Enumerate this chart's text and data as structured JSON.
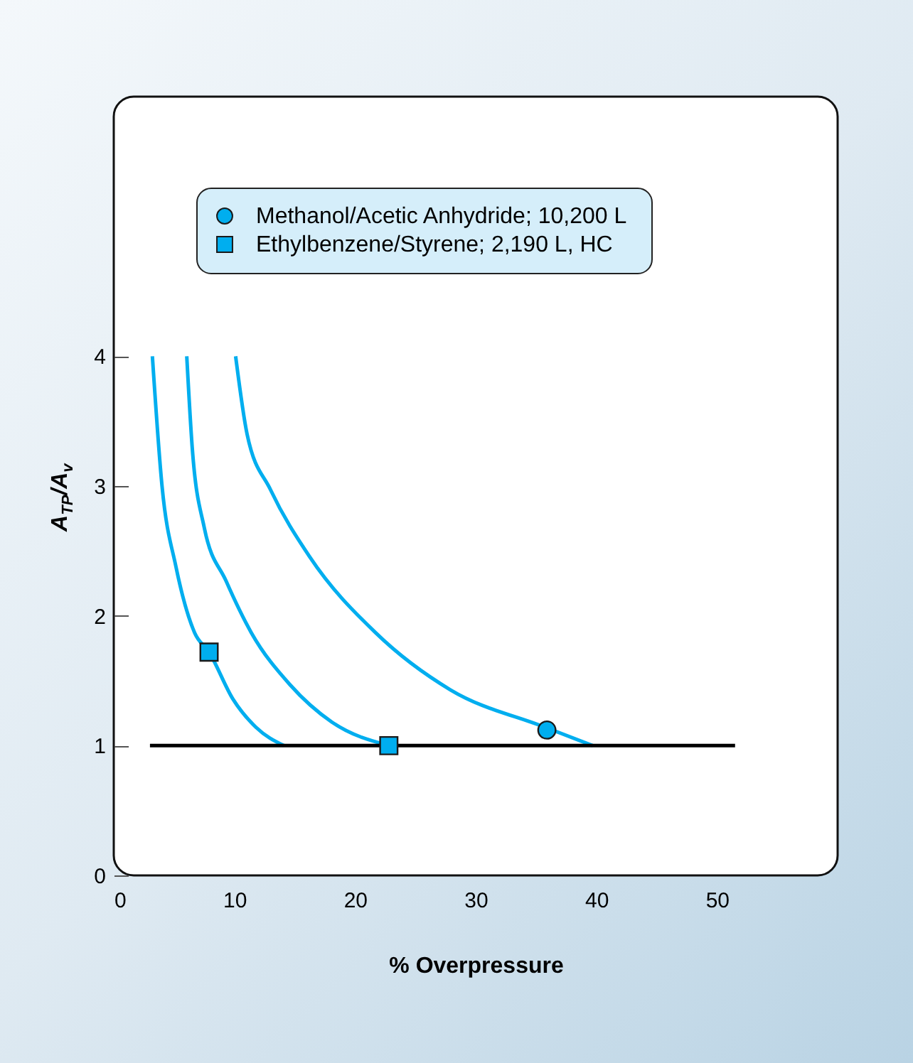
{
  "chart_data": {
    "type": "line",
    "xlabel": "% Overpressure",
    "ylabel": "A$_{TP}$/A$_{v}$",
    "xlim": [
      0,
      60
    ],
    "ylim": [
      0,
      6
    ],
    "xticks": [
      0,
      10,
      20,
      30,
      40,
      50
    ],
    "yticks": [
      0,
      1,
      2,
      3,
      4
    ],
    "grid": false,
    "legend": "top",
    "series": [
      {
        "color": "#00aeef",
        "x": [
          3.2,
          4.0,
          5.15,
          6.7,
          7.9,
          9.87,
          11.8,
          14.1
        ],
        "values": [
          4.0,
          3.0,
          2.38,
          1.87,
          1.72,
          1.36,
          1.14,
          1.0
        ]
      },
      {
        "color": "#00aeef",
        "x": [
          6.05,
          6.5,
          7.5,
          9.3,
          11.4,
          14.6,
          18.1,
          22.8
        ],
        "values": [
          4.0,
          3.3,
          2.68,
          2.27,
          1.87,
          1.47,
          1.18,
          1.0
        ]
      },
      {
        "color": "#00aeef",
        "x": [
          10.1,
          11.05,
          13.0,
          16.2,
          21.7,
          27.9,
          35.8,
          39.7
        ],
        "values": [
          4.0,
          3.4,
          2.97,
          2.46,
          1.87,
          1.43,
          1.14,
          1.0
        ]
      },
      {
        "color": "#000000",
        "x": [
          3.0,
          51.5
        ],
        "values": [
          1,
          1
        ]
      },
      {
        "type": "scatter",
        "name": "Methanol/Acetic Anhydride;  10,200 L",
        "color": "#00aeef",
        "marker": "circle",
        "x": [
          35.9
        ],
        "values": [
          1.12
        ]
      },
      {
        "type": "scatter",
        "name": "Ethylbenzene/Styrene;  2,190 L, HC",
        "color": "#00aeef",
        "marker": "square",
        "x": [
          7.9,
          22.8
        ],
        "values": [
          1.72,
          1.0
        ]
      }
    ]
  }
}
